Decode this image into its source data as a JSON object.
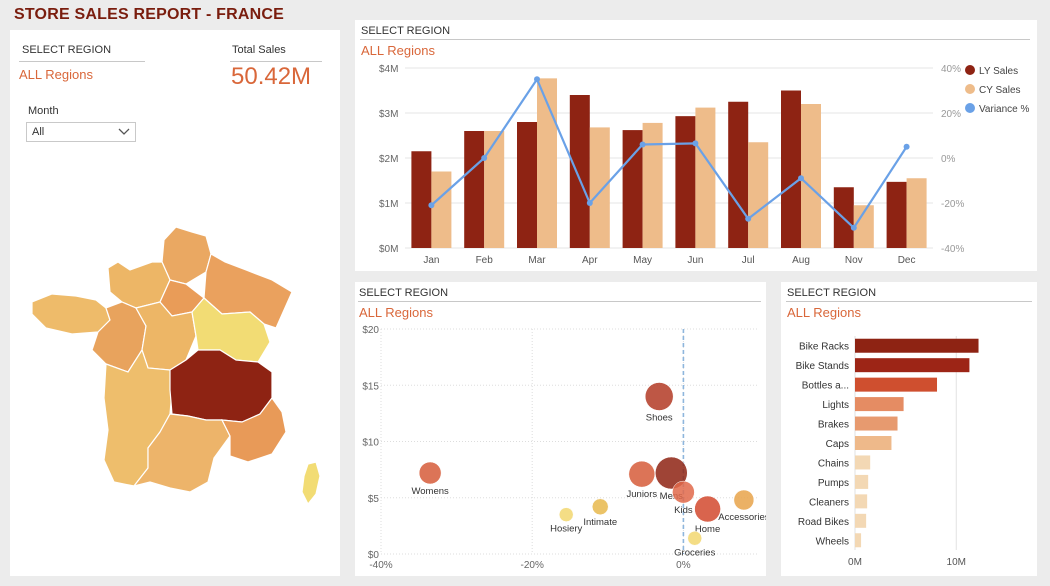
{
  "title": "STORE SALES REPORT - FRANCE",
  "colors": {
    "ly": "#8e2313",
    "cy": "#eebc8a",
    "variance": "#6aa1e7",
    "accent": "#d9673a",
    "title": "#7a1d0e"
  },
  "filters": {
    "region_label": "SELECT REGION",
    "region_value": "ALL Regions",
    "total_label": "Total Sales",
    "total_value": "50.42M",
    "month_label": "Month",
    "month_value": "All",
    "month_icon": "chevron-down-icon"
  },
  "combo": {
    "header": "SELECT REGION",
    "region": "ALL Regions",
    "chart_data": {
      "type": "bar",
      "categories": [
        "Jan",
        "Feb",
        "Mar",
        "Apr",
        "May",
        "Jun",
        "Jul",
        "Aug",
        "Nov",
        "Dec"
      ],
      "series": [
        {
          "name": "LY Sales",
          "values": [
            2.15,
            2.6,
            2.8,
            3.4,
            2.62,
            2.93,
            3.25,
            3.5,
            1.35,
            1.47
          ]
        },
        {
          "name": "CY Sales",
          "values": [
            1.7,
            2.6,
            3.77,
            2.68,
            2.78,
            3.12,
            2.35,
            3.2,
            0.95,
            1.55
          ]
        },
        {
          "name": "Variance %",
          "values": [
            -21,
            0,
            35,
            -20,
            6,
            6.5,
            -27,
            -9,
            -31,
            5
          ]
        }
      ],
      "ylim": [
        0,
        4
      ],
      "yticks": [
        "$0M",
        "$1M",
        "$2M",
        "$3M",
        "$4M"
      ],
      "y2lim": [
        -40,
        40
      ],
      "y2ticks": [
        "-40%",
        "-20%",
        "0%",
        "20%",
        "40%"
      ],
      "legend": [
        "LY Sales",
        "CY Sales",
        "Variance %"
      ]
    }
  },
  "scatter": {
    "header": "SELECT REGION",
    "region": "ALL Regions",
    "chart_data": {
      "type": "scatter",
      "xlim": [
        -40,
        10
      ],
      "ylim": [
        0,
        20
      ],
      "xticks": [
        -40,
        -20,
        0
      ],
      "xtick_labels": [
        "-40%",
        "-20%",
        "0%"
      ],
      "yticks": [
        0,
        5,
        10,
        15,
        20
      ],
      "ytick_labels": [
        "$0",
        "$5",
        "$10",
        "$15",
        "$20"
      ],
      "points": [
        {
          "name": "Shoes",
          "x": -3.2,
          "y": 14,
          "r": 14,
          "color": "#b33a25",
          "label": "Shoes"
        },
        {
          "name": "Womens",
          "x": -33.5,
          "y": 7.2,
          "r": 11,
          "color": "#d65c3a",
          "label": "Womens"
        },
        {
          "name": "Juniors",
          "x": -5.5,
          "y": 7.1,
          "r": 13,
          "color": "#d65c3a",
          "label": "Juniors"
        },
        {
          "name": "Mens",
          "x": -1.6,
          "y": 7.2,
          "r": 16,
          "color": "#8e2313",
          "label": "Mens"
        },
        {
          "name": "Kids",
          "x": 0,
          "y": 5.5,
          "r": 11,
          "color": "#e0694a",
          "label": "Kids"
        },
        {
          "name": "Home",
          "x": 3.2,
          "y": 4,
          "r": 13,
          "color": "#d2492e",
          "label": "Home"
        },
        {
          "name": "Accessories",
          "x": 8,
          "y": 4.8,
          "r": 10,
          "color": "#e8a34a",
          "label": "Accessories"
        },
        {
          "name": "Hosiery",
          "x": -15.5,
          "y": 3.5,
          "r": 7,
          "color": "#f2d770",
          "label": "Hosiery"
        },
        {
          "name": "Intimate",
          "x": -11,
          "y": 4.2,
          "r": 8,
          "color": "#e7b84c",
          "label": "Intimate"
        },
        {
          "name": "Groceries",
          "x": 1.5,
          "y": 1.4,
          "r": 7,
          "color": "#f2d770",
          "label": "Groceries"
        }
      ]
    }
  },
  "hbar": {
    "header": "SELECT REGION",
    "region": "ALL Regions",
    "chart_data": {
      "type": "bar",
      "orientation": "horizontal",
      "categories": [
        "Bike Racks",
        "Bike Stands",
        "Bottles a...",
        "Lights",
        "Brakes",
        "Caps",
        "Chains",
        "Pumps",
        "Cleaners",
        "Road Bikes",
        "Wheels"
      ],
      "values": [
        12.2,
        11.3,
        8.1,
        4.8,
        4.2,
        3.6,
        1.5,
        1.3,
        1.2,
        1.1,
        0.6
      ],
      "colors": [
        "#8e2313",
        "#9d2516",
        "#cf4f2f",
        "#e58c63",
        "#e79a6f",
        "#eeb98a",
        "#f3d8b4",
        "#f3d8b4",
        "#f3d8b4",
        "#f3d8b4",
        "#f3d8b4"
      ],
      "xlim": [
        0,
        16
      ],
      "xticks": [
        "0M",
        "10M"
      ]
    }
  },
  "map": {
    "name": "France regions map",
    "highlighted_region": "Auvergne-Rhone-Alpes"
  }
}
